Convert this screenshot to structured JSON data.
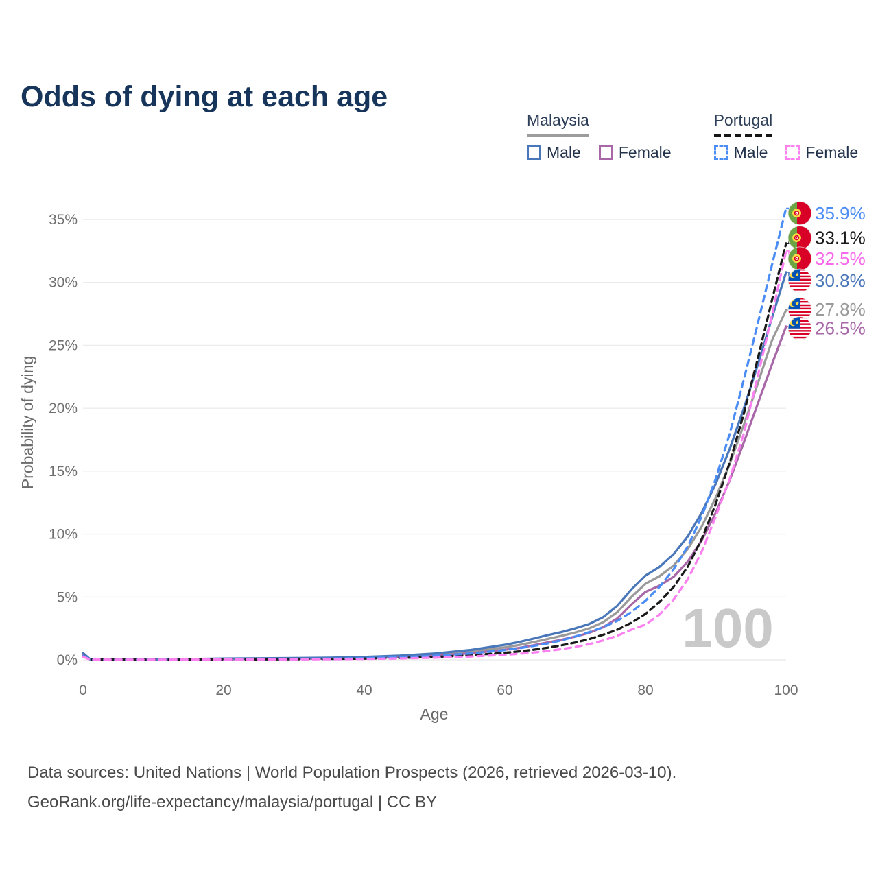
{
  "title": "Odds of dying at each age",
  "legend": {
    "groups": [
      {
        "label": "Malaysia",
        "line_style": "solid",
        "underline_color": "#9c9c9c",
        "items": [
          {
            "label": "Male",
            "color": "#4a77b9",
            "dashed": false
          },
          {
            "label": "Female",
            "color": "#a868a8",
            "dashed": false
          }
        ]
      },
      {
        "label": "Portugal",
        "line_style": "dashed",
        "underline_color": "#161616",
        "items": [
          {
            "label": "Male",
            "color": "#4c8df5",
            "dashed": true
          },
          {
            "label": "Female",
            "color": "#fb80f0",
            "dashed": true
          }
        ]
      }
    ]
  },
  "chart_data": {
    "type": "line",
    "title": "Odds of dying at each age",
    "xlabel": "Age",
    "ylabel": "Probability of dying",
    "xlim": [
      0,
      100
    ],
    "ylim": [
      0,
      36.5
    ],
    "grid": "horizontal",
    "legend_position": "top-right",
    "watermark": "100",
    "x_ticks": [
      0,
      20,
      40,
      60,
      80,
      100
    ],
    "y_ticks": [
      {
        "value": 0,
        "label": "0%"
      },
      {
        "value": 5,
        "label": "5%"
      },
      {
        "value": 10,
        "label": "10%"
      },
      {
        "value": 15,
        "label": "15%"
      },
      {
        "value": 20,
        "label": "20%"
      },
      {
        "value": 25,
        "label": "25%"
      },
      {
        "value": 30,
        "label": "30%"
      },
      {
        "value": 35,
        "label": "35%"
      }
    ],
    "x": [
      0,
      1,
      5,
      10,
      15,
      20,
      25,
      30,
      35,
      40,
      45,
      50,
      55,
      60,
      62,
      64,
      66,
      68,
      70,
      72,
      74,
      76,
      78,
      80,
      82,
      84,
      86,
      88,
      90,
      92,
      94,
      96,
      98,
      100
    ],
    "series": [
      {
        "id": "portugal-male",
        "country": "Portugal",
        "sex": "Male",
        "color": "#4c8df5",
        "dash": "9 7",
        "flag": "pt",
        "z": 5,
        "end_label": {
          "text": "35.9%",
          "value": 35.9,
          "label_pos": 35.5,
          "text_color": "#4c8df5"
        },
        "values": [
          0.3,
          0.02,
          0.01,
          0.01,
          0.03,
          0.05,
          0.06,
          0.07,
          0.09,
          0.13,
          0.2,
          0.32,
          0.5,
          0.78,
          0.92,
          1.1,
          1.3,
          1.55,
          1.85,
          2.2,
          2.6,
          3.1,
          3.8,
          4.7,
          5.8,
          7.2,
          9.0,
          11.4,
          14.4,
          18.0,
          22.3,
          26.8,
          31.4,
          35.9
        ]
      },
      {
        "id": "portugal-all",
        "country": "Portugal",
        "sex": "All",
        "color": "#1a1a1a",
        "dash": "8 6",
        "flag": "pt",
        "z": 4,
        "end_label": {
          "text": "33.1%",
          "value": 33.1,
          "label_pos": 33.55,
          "text_color": "#1a1a1a"
        },
        "values": [
          0.27,
          0.02,
          0.01,
          0.01,
          0.02,
          0.03,
          0.04,
          0.05,
          0.07,
          0.1,
          0.15,
          0.23,
          0.36,
          0.56,
          0.67,
          0.8,
          0.96,
          1.15,
          1.38,
          1.65,
          2.0,
          2.4,
          2.95,
          3.65,
          4.6,
          5.8,
          7.4,
          9.6,
          12.4,
          15.7,
          19.6,
          24.0,
          28.6,
          33.1
        ]
      },
      {
        "id": "portugal-female",
        "country": "Portugal",
        "sex": "Female",
        "color": "#fb80f0",
        "dash": "9 7",
        "flag": "pt",
        "z": 6,
        "end_label": {
          "text": "32.5%",
          "value": 32.5,
          "label_pos": 31.9,
          "text_color": "#f768ea"
        },
        "values": [
          0.25,
          0.02,
          0.01,
          0.01,
          0.02,
          0.02,
          0.03,
          0.04,
          0.05,
          0.07,
          0.11,
          0.17,
          0.26,
          0.4,
          0.48,
          0.58,
          0.7,
          0.85,
          1.03,
          1.25,
          1.55,
          1.92,
          2.4,
          2.8,
          3.6,
          4.8,
          6.4,
          8.6,
          11.4,
          14.4,
          18.0,
          22.6,
          27.4,
          32.5
        ]
      },
      {
        "id": "malaysia-male",
        "country": "Malaysia",
        "sex": "Male",
        "color": "#4a77b9",
        "dash": null,
        "flag": "my",
        "z": 3,
        "end_label": {
          "text": "30.8%",
          "value": 30.8,
          "label_pos": 30.15,
          "text_color": "#4a77b9"
        },
        "values": [
          0.55,
          0.05,
          0.03,
          0.03,
          0.06,
          0.1,
          0.12,
          0.14,
          0.17,
          0.23,
          0.33,
          0.5,
          0.78,
          1.2,
          1.42,
          1.68,
          1.95,
          2.2,
          2.5,
          2.85,
          3.4,
          4.3,
          5.6,
          6.7,
          7.4,
          8.4,
          9.8,
          11.7,
          14.0,
          16.8,
          20.0,
          23.5,
          27.2,
          30.8
        ]
      },
      {
        "id": "malaysia-all",
        "country": "Malaysia",
        "sex": "All",
        "color": "#9a9a9a",
        "dash": null,
        "flag": "my",
        "z": 1,
        "end_label": {
          "text": "27.8%",
          "value": 27.8,
          "label_pos": 27.85,
          "text_color": "#9a9a9a"
        },
        "values": [
          0.5,
          0.045,
          0.025,
          0.025,
          0.05,
          0.08,
          0.09,
          0.11,
          0.14,
          0.19,
          0.27,
          0.42,
          0.65,
          1.0,
          1.18,
          1.4,
          1.65,
          1.9,
          2.17,
          2.5,
          3.0,
          3.8,
          5.0,
          6.05,
          6.65,
          7.5,
          8.8,
          10.6,
          12.9,
          15.6,
          18.7,
          22.0,
          25.4,
          27.8
        ]
      },
      {
        "id": "malaysia-female",
        "country": "Malaysia",
        "sex": "Female",
        "color": "#a868a8",
        "dash": null,
        "flag": "my",
        "z": 2,
        "end_label": {
          "text": "26.5%",
          "value": 26.5,
          "label_pos": 26.35,
          "text_color": "#a868a8"
        },
        "values": [
          0.45,
          0.04,
          0.02,
          0.02,
          0.04,
          0.05,
          0.06,
          0.08,
          0.1,
          0.14,
          0.21,
          0.33,
          0.52,
          0.8,
          0.95,
          1.15,
          1.38,
          1.6,
          1.85,
          2.15,
          2.6,
          3.3,
          4.4,
          5.4,
          5.9,
          6.6,
          7.8,
          9.5,
          11.7,
          14.3,
          17.3,
          20.4,
          23.5,
          26.5
        ]
      }
    ]
  },
  "footer": {
    "line1": "Data sources: United Nations | World Population Prospects (2026, retrieved 2026-03-10).",
    "line2": "GeoRank.org/life-expectancy/malaysia/portugal | CC BY"
  }
}
